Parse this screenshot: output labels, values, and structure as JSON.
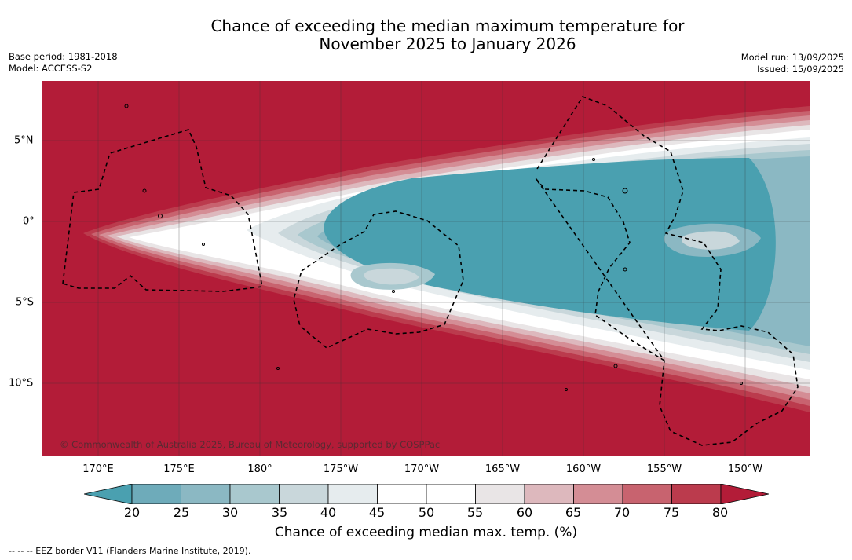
{
  "title": {
    "line1": "Chance of exceeding the median maximum temperature for",
    "line2": "November 2025 to January 2026"
  },
  "meta": {
    "base_period": "Base period: 1981-2018",
    "model": "Model: ACCESS-S2",
    "model_run": "Model run: 13/09/2025",
    "issued": "Issued: 15/09/2025"
  },
  "map": {
    "copyright": "© Commonwealth of Australia 2025, Bureau of Meteorology, supported by COSPPac",
    "longitude_labels": [
      "170°E",
      "175°E",
      "180°",
      "175°W",
      "170°W",
      "165°W",
      "160°W",
      "155°W",
      "150°W"
    ],
    "latitude_labels": [
      "5°N",
      "0°",
      "5°S",
      "10°S"
    ],
    "background_color": "#b31c38"
  },
  "colorbar": {
    "ticks": [
      "20",
      "25",
      "30",
      "35",
      "40",
      "45",
      "50",
      "55",
      "60",
      "65",
      "70",
      "75",
      "80"
    ],
    "colors": [
      "#4aa0b0",
      "#6eabba",
      "#8bb8c3",
      "#a9c8ce",
      "#c9d7db",
      "#e6ecee",
      "#ffffff",
      "#ffffff",
      "#e9e5e6",
      "#ddb8bd",
      "#d48d95",
      "#c8636f",
      "#bb3b4d",
      "#b31c38"
    ],
    "label": "Chance of exceeding median max. temp. (%)"
  },
  "footnote": "-- -- -- EEZ border V11 (Flanders Marine Institute, 2019)."
}
